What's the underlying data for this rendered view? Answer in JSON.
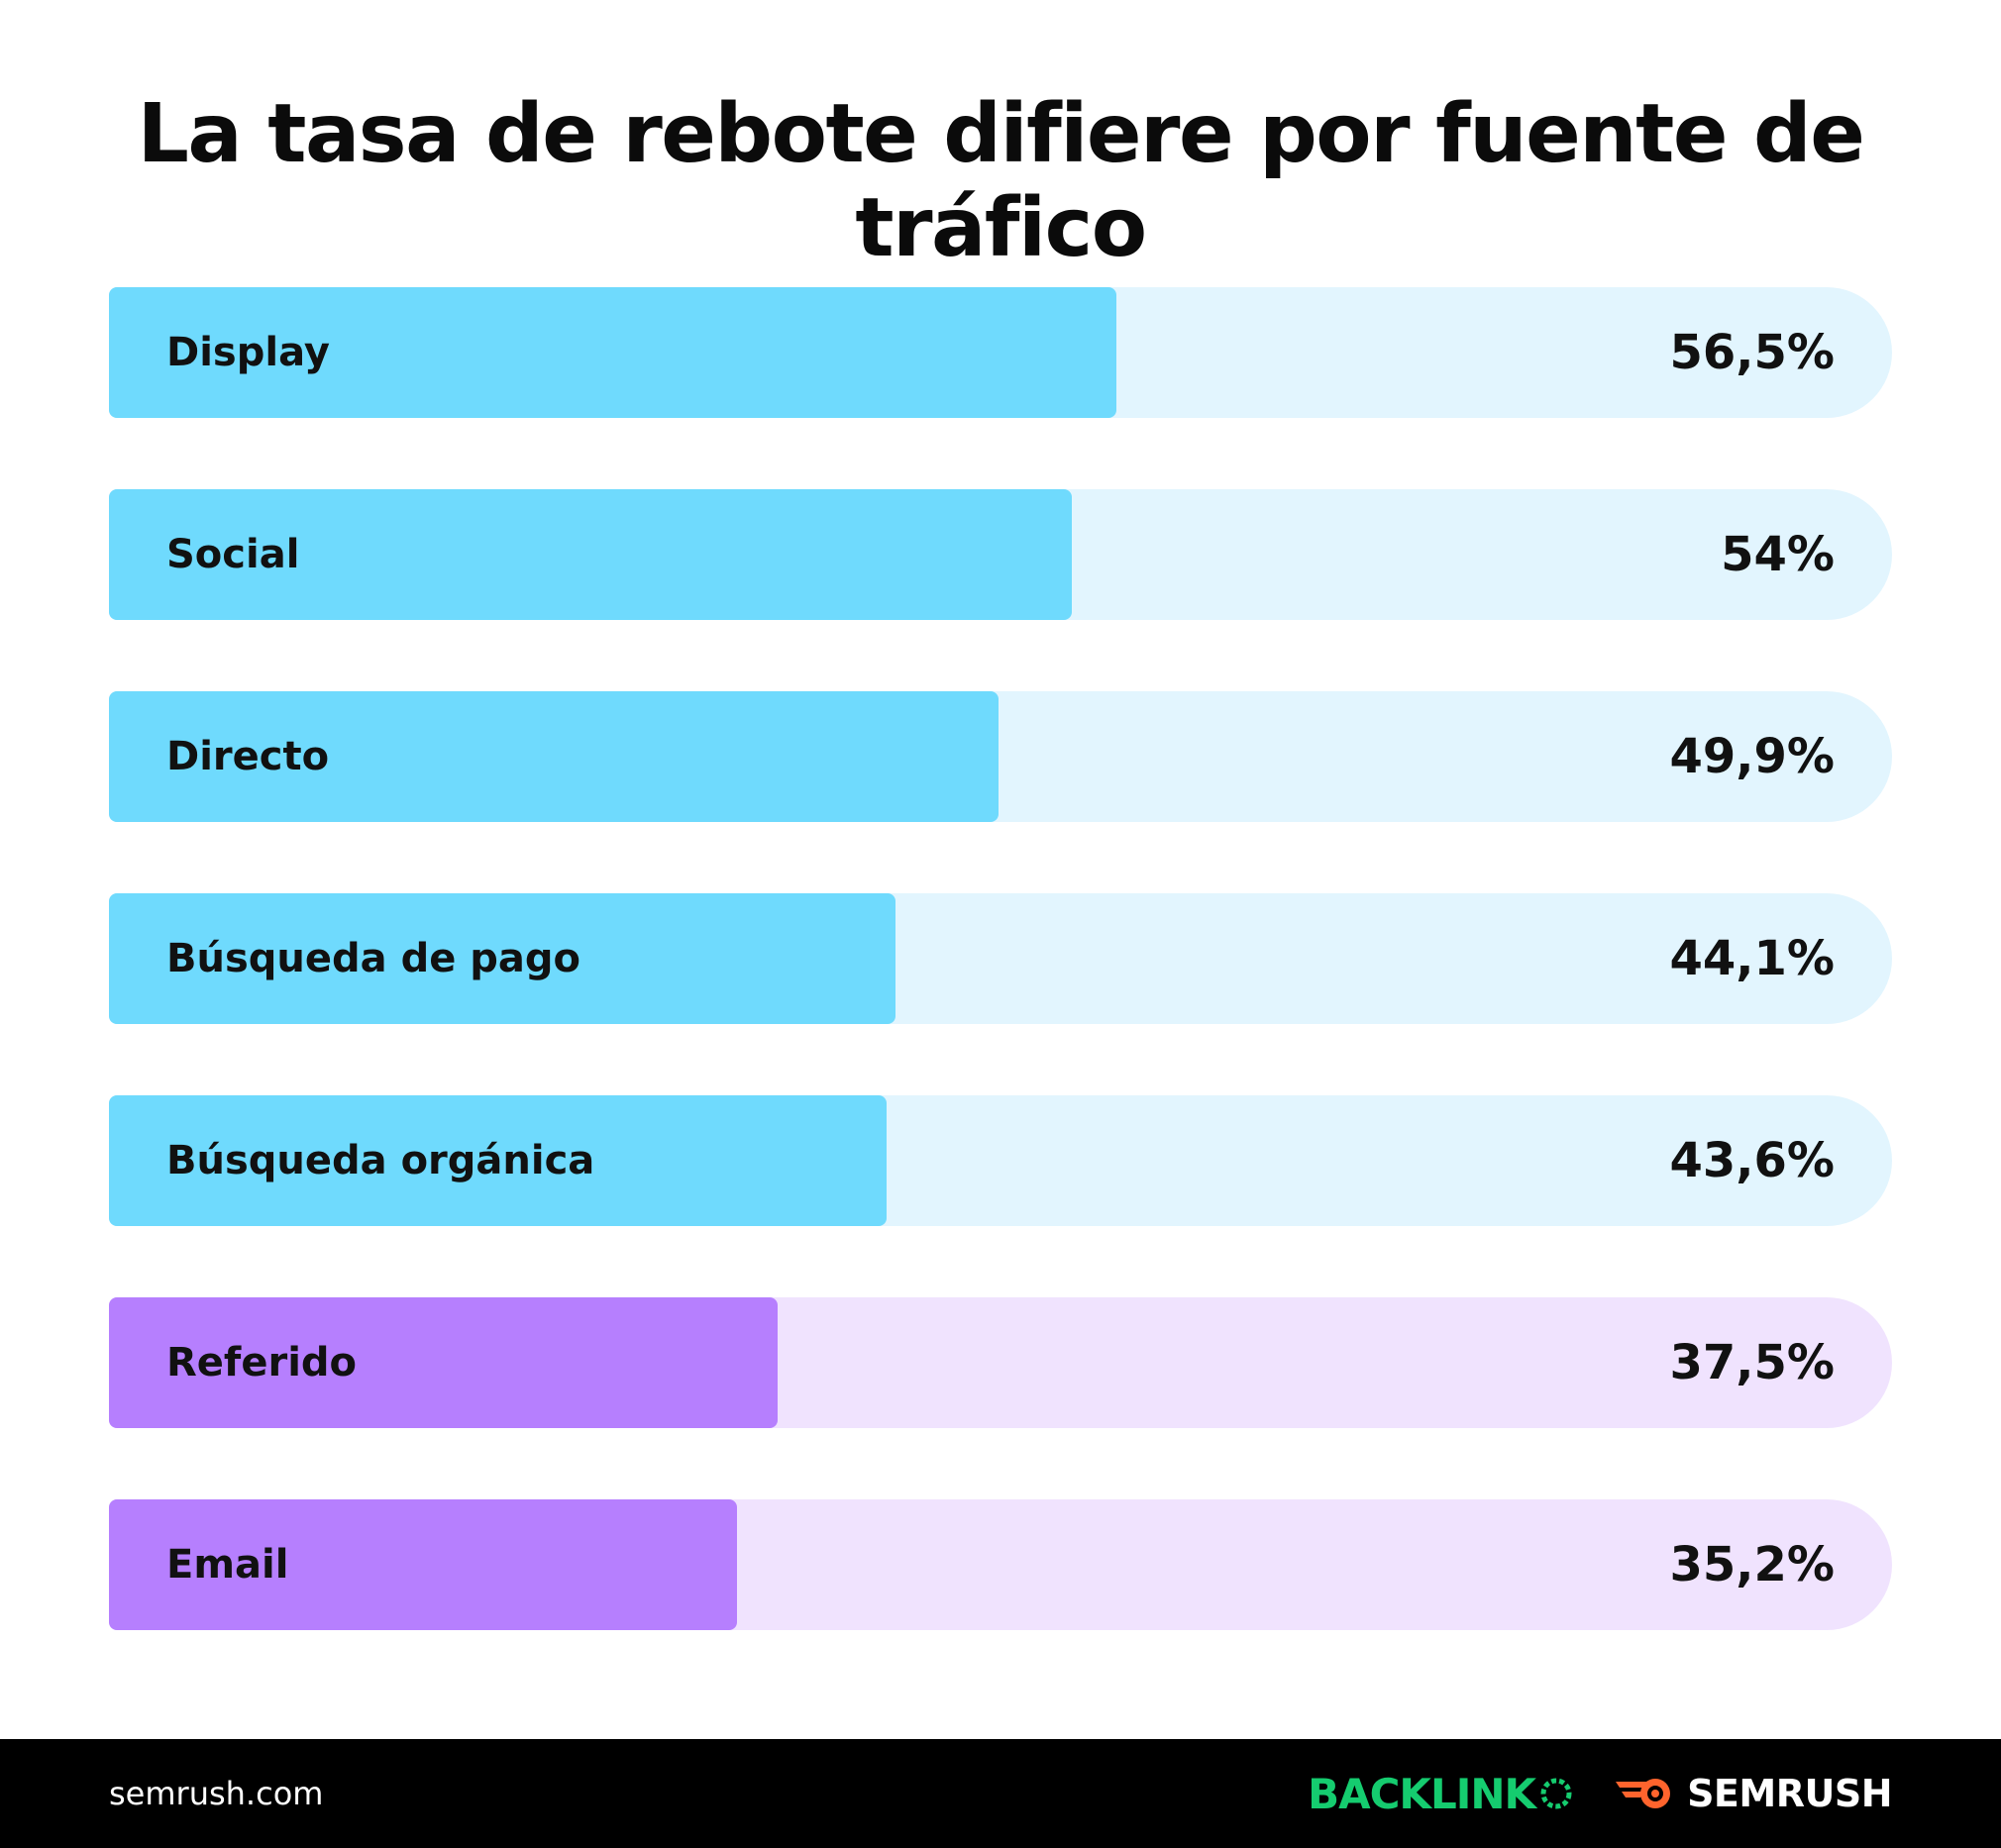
{
  "chart_data": {
    "type": "bar",
    "orientation": "horizontal",
    "title": "La tasa de rebote difiere por fuente de tráfico",
    "categories": [
      "Display",
      "Social",
      "Directo",
      "Búsqueda de pago",
      "Búsqueda orgánica",
      "Referido",
      "Email"
    ],
    "values": [
      56.5,
      54,
      49.9,
      44.1,
      43.6,
      37.5,
      35.2
    ],
    "value_labels": [
      "56,5%",
      "54%",
      "49,9%",
      "44,1%",
      "43,6%",
      "37,5%",
      "35,2%"
    ],
    "groups": [
      "blue",
      "blue",
      "blue",
      "blue",
      "blue",
      "purple",
      "purple"
    ],
    "xlim": [
      0,
      100
    ],
    "xlabel": "",
    "ylabel": "",
    "grid": false,
    "legend": "none"
  },
  "colors": {
    "blue_fill": "#6fdafd",
    "blue_track": "#e2f5fe",
    "purple_fill": "#b67ffe",
    "purple_track": "#f0e3fe",
    "text": "#111111",
    "footer_bg": "#000000",
    "backlinko_green": "#15cc6f",
    "semrush_orange": "#ff642d"
  },
  "footer": {
    "site": "semrush.com",
    "backlinko_text": "BACKLINK",
    "semrush_text": "SEMRUSH",
    "icons": [
      "backlinko-o-icon",
      "semrush-flame-icon"
    ]
  }
}
